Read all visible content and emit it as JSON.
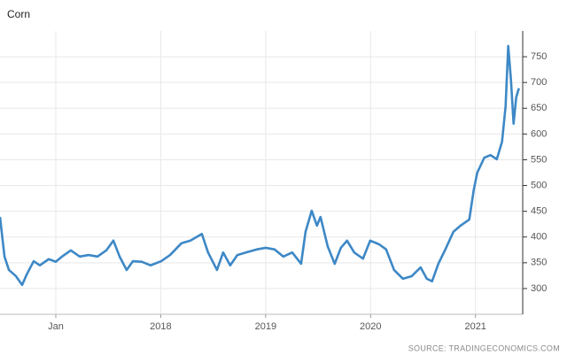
{
  "chart_data": {
    "type": "line",
    "title": "Corn",
    "source": "SOURCE: TRADINGECONOMICS.COM",
    "grid": true,
    "color": "#3d88c6",
    "x": [
      2016.468,
      2016.511,
      2016.553,
      2016.62,
      2016.679,
      2016.722,
      2016.789,
      2016.848,
      2016.932,
      2017.0,
      2017.059,
      2017.143,
      2017.228,
      2017.312,
      2017.397,
      2017.481,
      2017.549,
      2017.608,
      2017.675,
      2017.734,
      2017.819,
      2017.903,
      2018.004,
      2018.089,
      2018.198,
      2018.283,
      2018.392,
      2018.451,
      2018.536,
      2018.595,
      2018.662,
      2018.73,
      2018.814,
      2018.916,
      2019.0,
      2019.084,
      2019.169,
      2019.253,
      2019.338,
      2019.38,
      2019.439,
      2019.489,
      2019.523,
      2019.591,
      2019.658,
      2019.717,
      2019.776,
      2019.844,
      2019.928,
      2019.996,
      2020.08,
      2020.148,
      2020.224,
      2020.308,
      2020.392,
      2020.477,
      2020.536,
      2020.586,
      2020.646,
      2020.713,
      2020.789,
      2020.857,
      2020.941,
      2020.983,
      2021.017,
      2021.084,
      2021.143,
      2021.203,
      2021.253,
      2021.287,
      2021.312,
      2021.338,
      2021.363,
      2021.388,
      2021.414
    ],
    "series": [
      {
        "name": "Corn",
        "values": [
          439,
          362,
          336,
          324,
          307,
          327,
          353,
          345,
          357,
          352,
          362,
          374,
          362,
          365,
          362,
          374,
          393,
          362,
          336,
          353,
          352,
          345,
          353,
          365,
          388,
          393,
          406,
          370,
          336,
          370,
          345,
          365,
          370,
          376,
          379,
          376,
          362,
          370,
          348,
          410,
          451,
          422,
          439,
          382,
          348,
          379,
          393,
          370,
          358,
          393,
          386,
          376,
          336,
          319,
          324,
          341,
          319,
          314,
          348,
          376,
          410,
          422,
          434,
          491,
          525,
          554,
          559,
          551,
          585,
          654,
          771,
          705,
          620,
          671,
          689
        ]
      }
    ],
    "xlim": [
      2016.468,
      2021.45
    ],
    "xticks": [
      {
        "value": 2017,
        "label": "Jan"
      },
      2018,
      2019,
      2020,
      2021
    ],
    "ylim": [
      250,
      800
    ],
    "yticks": [
      300,
      350,
      400,
      450,
      500,
      550,
      600,
      650,
      700,
      750
    ]
  }
}
